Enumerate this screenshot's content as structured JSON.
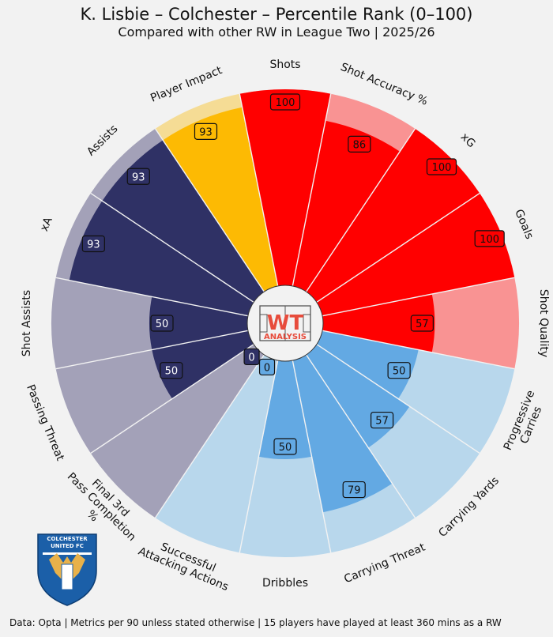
{
  "header": {
    "title": "K. Lisbie – Colchester – Percentile Rank (0–100)",
    "subtitle": "Compared with other RW in League Two | 2025/26"
  },
  "footer": {
    "text": "Data: Opta | Metrics per 90 unless stated otherwise | 15 players have played at least 360 mins as a RW"
  },
  "logo": {
    "text_top": "WT",
    "text_bottom": "ANALYSIS",
    "color": "#e74c3c"
  },
  "crest": {
    "line1": "COLCHESTER",
    "line2": "UNITED FC",
    "color": "#1b5fa8"
  },
  "chart_data": {
    "type": "polar-bar",
    "scale": [
      0,
      100
    ],
    "groups": [
      {
        "name": "shooting",
        "dark": "#ff0000",
        "light": "#f99393"
      },
      {
        "name": "carrying",
        "dark": "#63a9e3",
        "light": "#b8d7ec"
      },
      {
        "name": "passing",
        "dark": "#2f3165",
        "light": "#a3a1b8"
      },
      {
        "name": "impact",
        "dark": "#fdba03",
        "light": "#f5dc95"
      }
    ],
    "metrics": [
      {
        "label": "Shots",
        "value": 100,
        "group": "shooting"
      },
      {
        "label": "Shot Accuracy %",
        "value": 86,
        "group": "shooting"
      },
      {
        "label": "xG",
        "value": 100,
        "group": "shooting"
      },
      {
        "label": "Goals",
        "value": 100,
        "group": "shooting"
      },
      {
        "label": "Shot Quality",
        "value": 57,
        "group": "shooting"
      },
      {
        "label": "Progressive Carries",
        "value": 50,
        "group": "carrying"
      },
      {
        "label": "Carrying Yards",
        "value": 57,
        "group": "carrying"
      },
      {
        "label": "Carrying Threat",
        "value": 79,
        "group": "carrying"
      },
      {
        "label": "Dribbles",
        "value": 50,
        "group": "carrying"
      },
      {
        "label": "Successful Attacking Actions",
        "value": 0,
        "group": "carrying"
      },
      {
        "label": "Final 3rd Pass Completion %",
        "value": 0,
        "group": "passing"
      },
      {
        "label": "Passing Threat",
        "value": 50,
        "group": "passing"
      },
      {
        "label": "Shot Assists",
        "value": 50,
        "group": "passing"
      },
      {
        "label": "xA",
        "value": 93,
        "group": "passing"
      },
      {
        "label": "Assists",
        "value": 93,
        "group": "passing"
      },
      {
        "label": "Player Impact",
        "value": 93,
        "group": "impact"
      }
    ]
  }
}
